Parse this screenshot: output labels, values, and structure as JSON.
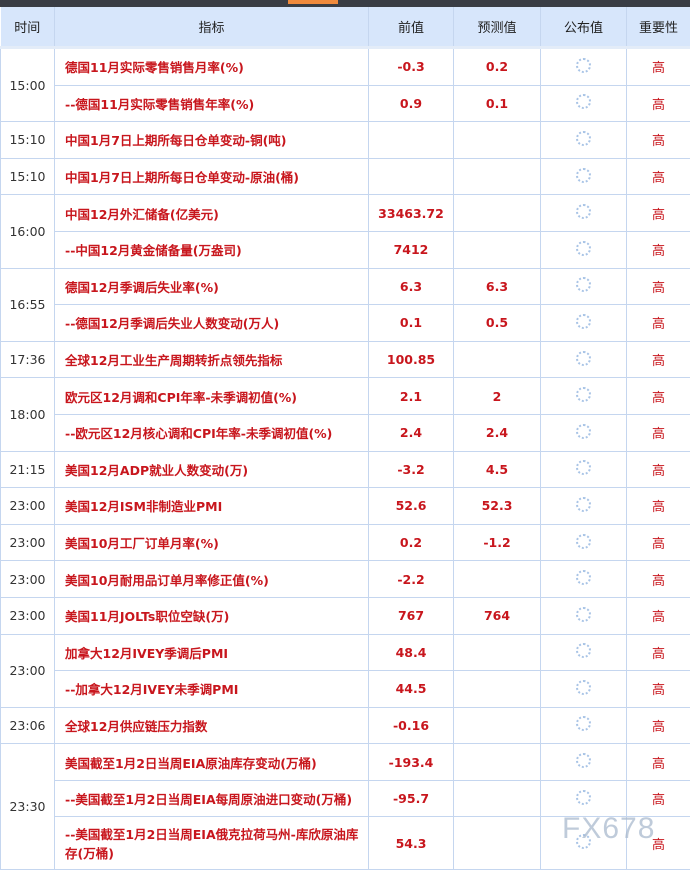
{
  "columns": [
    "时间",
    "指标",
    "前值",
    "预测值",
    "公布值",
    "重要性"
  ],
  "rows": [
    {
      "time": "15:00",
      "span": 2,
      "name": "德国11月实际零售销售月率(%)",
      "prev": "-0.3",
      "forecast": "0.2",
      "importance": "高"
    },
    {
      "name": "--德国11月实际零售销售年率(%)",
      "prev": "0.9",
      "forecast": "0.1",
      "importance": "高"
    },
    {
      "time": "15:10",
      "span": 1,
      "name": "中国1月7日上期所每日仓单变动-铜(吨)",
      "prev": "",
      "forecast": "",
      "importance": "高"
    },
    {
      "time": "15:10",
      "span": 1,
      "name": "中国1月7日上期所每日仓单变动-原油(桶)",
      "prev": "",
      "forecast": "",
      "importance": "高"
    },
    {
      "time": "16:00",
      "span": 2,
      "name": "中国12月外汇储备(亿美元)",
      "prev": "33463.72",
      "forecast": "",
      "importance": "高"
    },
    {
      "name": "--中国12月黄金储备量(万盎司)",
      "prev": "7412",
      "forecast": "",
      "importance": "高"
    },
    {
      "time": "16:55",
      "span": 2,
      "name": "德国12月季调后失业率(%)",
      "prev": "6.3",
      "forecast": "6.3",
      "importance": "高"
    },
    {
      "name": "--德国12月季调后失业人数变动(万人)",
      "prev": "0.1",
      "forecast": "0.5",
      "importance": "高"
    },
    {
      "time": "17:36",
      "span": 1,
      "name": "全球12月工业生产周期转折点领先指标",
      "prev": "100.85",
      "forecast": "",
      "importance": "高"
    },
    {
      "time": "18:00",
      "span": 2,
      "name": "欧元区12月调和CPI年率-未季调初值(%)",
      "prev": "2.1",
      "forecast": "2",
      "importance": "高"
    },
    {
      "name": "--欧元区12月核心调和CPI年率-未季调初值(%)",
      "prev": "2.4",
      "forecast": "2.4",
      "importance": "高"
    },
    {
      "time": "21:15",
      "span": 1,
      "name": "美国12月ADP就业人数变动(万)",
      "prev": "-3.2",
      "forecast": "4.5",
      "importance": "高"
    },
    {
      "time": "23:00",
      "span": 1,
      "name": "美国12月ISM非制造业PMI",
      "prev": "52.6",
      "forecast": "52.3",
      "importance": "高"
    },
    {
      "time": "23:00",
      "span": 1,
      "name": "美国10月工厂订单月率(%)",
      "prev": "0.2",
      "forecast": "-1.2",
      "importance": "高"
    },
    {
      "time": "23:00",
      "span": 1,
      "name": "美国10月耐用品订单月率修正值(%)",
      "prev": "-2.2",
      "forecast": "",
      "importance": "高"
    },
    {
      "time": "23:00",
      "span": 1,
      "name": "美国11月JOLTs职位空缺(万)",
      "prev": "767",
      "forecast": "764",
      "importance": "高"
    },
    {
      "time": "23:00",
      "span": 2,
      "name": "加拿大12月IVEY季调后PMI",
      "prev": "48.4",
      "forecast": "",
      "importance": "高"
    },
    {
      "name": "--加拿大12月IVEY未季调PMI",
      "prev": "44.5",
      "forecast": "",
      "importance": "高"
    },
    {
      "time": "23:06",
      "span": 1,
      "name": "全球12月供应链压力指数",
      "prev": "-0.16",
      "forecast": "",
      "importance": "高"
    },
    {
      "time": "23:30",
      "span": 3,
      "name": "美国截至1月2日当周EIA原油库存变动(万桶)",
      "prev": "-193.4",
      "forecast": "",
      "importance": "高"
    },
    {
      "name": "--美国截至1月2日当周EIA每周原油进口变动(万桶)",
      "prev": "-95.7",
      "forecast": "",
      "importance": "高"
    },
    {
      "name": "--美国截至1月2日当周EIA俄克拉荷马州-库欣原油库存(万桶)",
      "prev": "54.3",
      "forecast": "",
      "importance": "高",
      "tall": true
    }
  ],
  "actual_icon": "loading-spinner-icon",
  "watermark": "FX678",
  "colors": {
    "header_bg": "#d7e6fb",
    "text_red": "#c8161d",
    "accent": "#f08a3c"
  }
}
